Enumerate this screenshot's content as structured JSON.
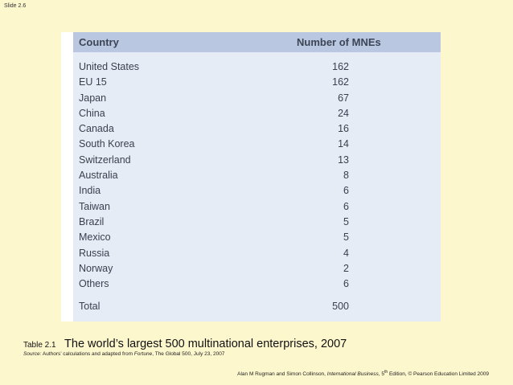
{
  "slide": {
    "number": "Slide 2.6"
  },
  "table": {
    "headers": {
      "country": "Country",
      "count": "Number of MNEs"
    },
    "rows": [
      {
        "country": "United States",
        "count": "162"
      },
      {
        "country": "EU 15",
        "count": "162"
      },
      {
        "country": "Japan",
        "count": "67"
      },
      {
        "country": "China",
        "count": "24"
      },
      {
        "country": "Canada",
        "count": "16"
      },
      {
        "country": "South Korea",
        "count": "14"
      },
      {
        "country": "Switzerland",
        "count": "13"
      },
      {
        "country": "Australia",
        "count": "8"
      },
      {
        "country": "India",
        "count": "6"
      },
      {
        "country": "Taiwan",
        "count": "6"
      },
      {
        "country": "Brazil",
        "count": "5"
      },
      {
        "country": "Mexico",
        "count": "5"
      },
      {
        "country": "Russia",
        "count": "4"
      },
      {
        "country": "Norway",
        "count": "2"
      },
      {
        "country": "Others",
        "count": "6"
      }
    ],
    "total": {
      "label": "Total",
      "count": "500"
    }
  },
  "caption": {
    "label": "Table 2.1",
    "title": "The world’s largest 500 multinational enterprises, 2007"
  },
  "source": {
    "prefix": "Source:",
    "text_before": " Authors’ calculations and adapted from ",
    "publication": "Fortune",
    "text_after": ", The Global 500, July 23, 2007"
  },
  "credit": {
    "authors": "Alan M Rugman and Simon Collinson, ",
    "book": "International Business",
    "edition_num": ", 5",
    "edition_sup": "th",
    "rest": " Edition, © Pearson Education Limited 2009"
  }
}
